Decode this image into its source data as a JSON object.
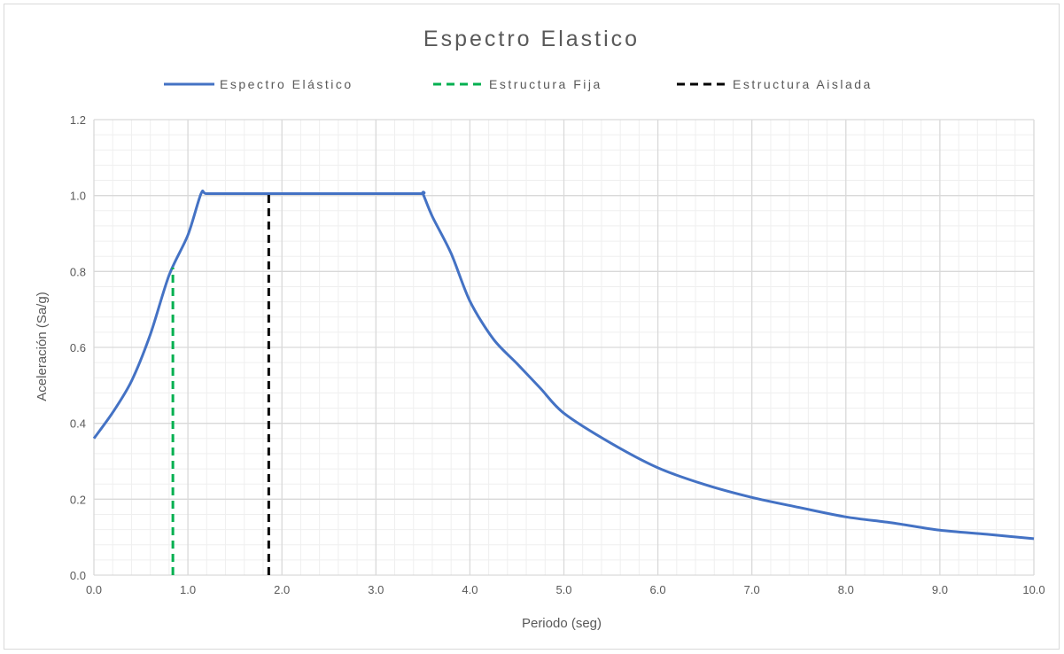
{
  "colors": {
    "spectrum": "#4472c4",
    "fixed": "#00b050",
    "isolated": "#000000",
    "grid_major": "#d9d9d9",
    "grid_minor": "#efefef",
    "text": "#595959"
  },
  "chart_data": {
    "type": "line",
    "title": "Espectro Elastico",
    "xlabel": "Periodo (seg)",
    "ylabel": "Aceleración (Sa/g)",
    "xlim": [
      0,
      10
    ],
    "ylim": [
      0,
      1.2
    ],
    "x_major_step": 1,
    "y_major_step": 0.2,
    "x_minor_step": 0.2,
    "y_minor_step": 0.04,
    "grid": true,
    "legend_position": "top",
    "x_tick_labels": [
      "0.0",
      "1.0",
      "2.0",
      "3.0",
      "4.0",
      "5.0",
      "6.0",
      "7.0",
      "8.0",
      "9.0",
      "10.0"
    ],
    "y_tick_labels": [
      "0.0",
      "0.2",
      "0.4",
      "0.6",
      "0.8",
      "1.0",
      "1.2"
    ],
    "series": [
      {
        "name": "Espectro Elástico",
        "style": "solid",
        "color": "#4472c4",
        "points": [
          [
            0.0,
            0.36
          ],
          [
            0.2,
            0.4285
          ],
          [
            0.4,
            0.5113
          ],
          [
            0.6,
            0.6339
          ],
          [
            0.8,
            0.7903
          ],
          [
            1.0,
            0.8959
          ],
          [
            1.14,
            1.005
          ],
          [
            1.2,
            1.005
          ],
          [
            1.5,
            1.005
          ],
          [
            2.0,
            1.005
          ],
          [
            2.5,
            1.005
          ],
          [
            3.0,
            1.005
          ],
          [
            3.48,
            1.005
          ],
          [
            3.5,
            1.005
          ],
          [
            3.6,
            0.945
          ],
          [
            3.8,
            0.8477
          ],
          [
            4.0,
            0.7219
          ],
          [
            4.25,
            0.6218
          ],
          [
            4.5,
            0.5575
          ],
          [
            4.75,
            0.4923
          ],
          [
            5.0,
            0.4266
          ],
          [
            5.5,
            0.3478
          ],
          [
            6.0,
            0.2828
          ],
          [
            6.5,
            0.2385
          ],
          [
            7.0,
            0.2047
          ],
          [
            7.5,
            0.1784
          ],
          [
            8.0,
            0.1534
          ],
          [
            8.5,
            0.1375
          ],
          [
            9.0,
            0.1184
          ],
          [
            9.5,
            0.1076
          ],
          [
            10.0,
            0.0959
          ]
        ]
      },
      {
        "name": "Estructura Fija",
        "style": "dashed",
        "color": "#00b050",
        "points": [
          [
            0.84,
            0.0
          ],
          [
            0.84,
            0.81
          ]
        ]
      },
      {
        "name": "Estructura Aislada",
        "style": "dashed",
        "color": "#000000",
        "points": [
          [
            1.86,
            0.0
          ],
          [
            1.86,
            1.005
          ]
        ]
      }
    ]
  }
}
